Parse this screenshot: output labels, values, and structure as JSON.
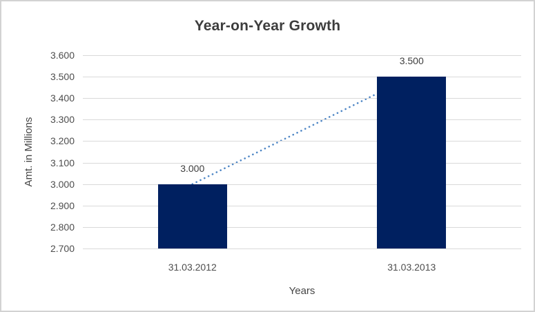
{
  "chart_data": {
    "type": "bar",
    "title": "Year-on-Year Growth",
    "xlabel": "Years",
    "ylabel": "Amt. in Millions",
    "categories": [
      "31.03.2012",
      "31.03.2013"
    ],
    "values": [
      3.0,
      3.5
    ],
    "data_labels": [
      "3.000",
      "3.500"
    ],
    "ylim": [
      2.7,
      3.6
    ],
    "ytick_labels": [
      "3.600",
      "3.500",
      "3.400",
      "3.300",
      "3.200",
      "3.100",
      "3.000",
      "2.900",
      "2.800",
      "2.700"
    ],
    "grid": true,
    "legend": "none",
    "trendline": {
      "style": "dotted",
      "from_category_index": 0,
      "to_category_index": 1
    },
    "colors": {
      "bar": "#002060",
      "trendline": "#4e86c5",
      "gridline": "#d9d9d9",
      "title_text": "#3d3d3d",
      "axis_text": "#4d4d4d",
      "border": "#d2d2d2"
    }
  }
}
